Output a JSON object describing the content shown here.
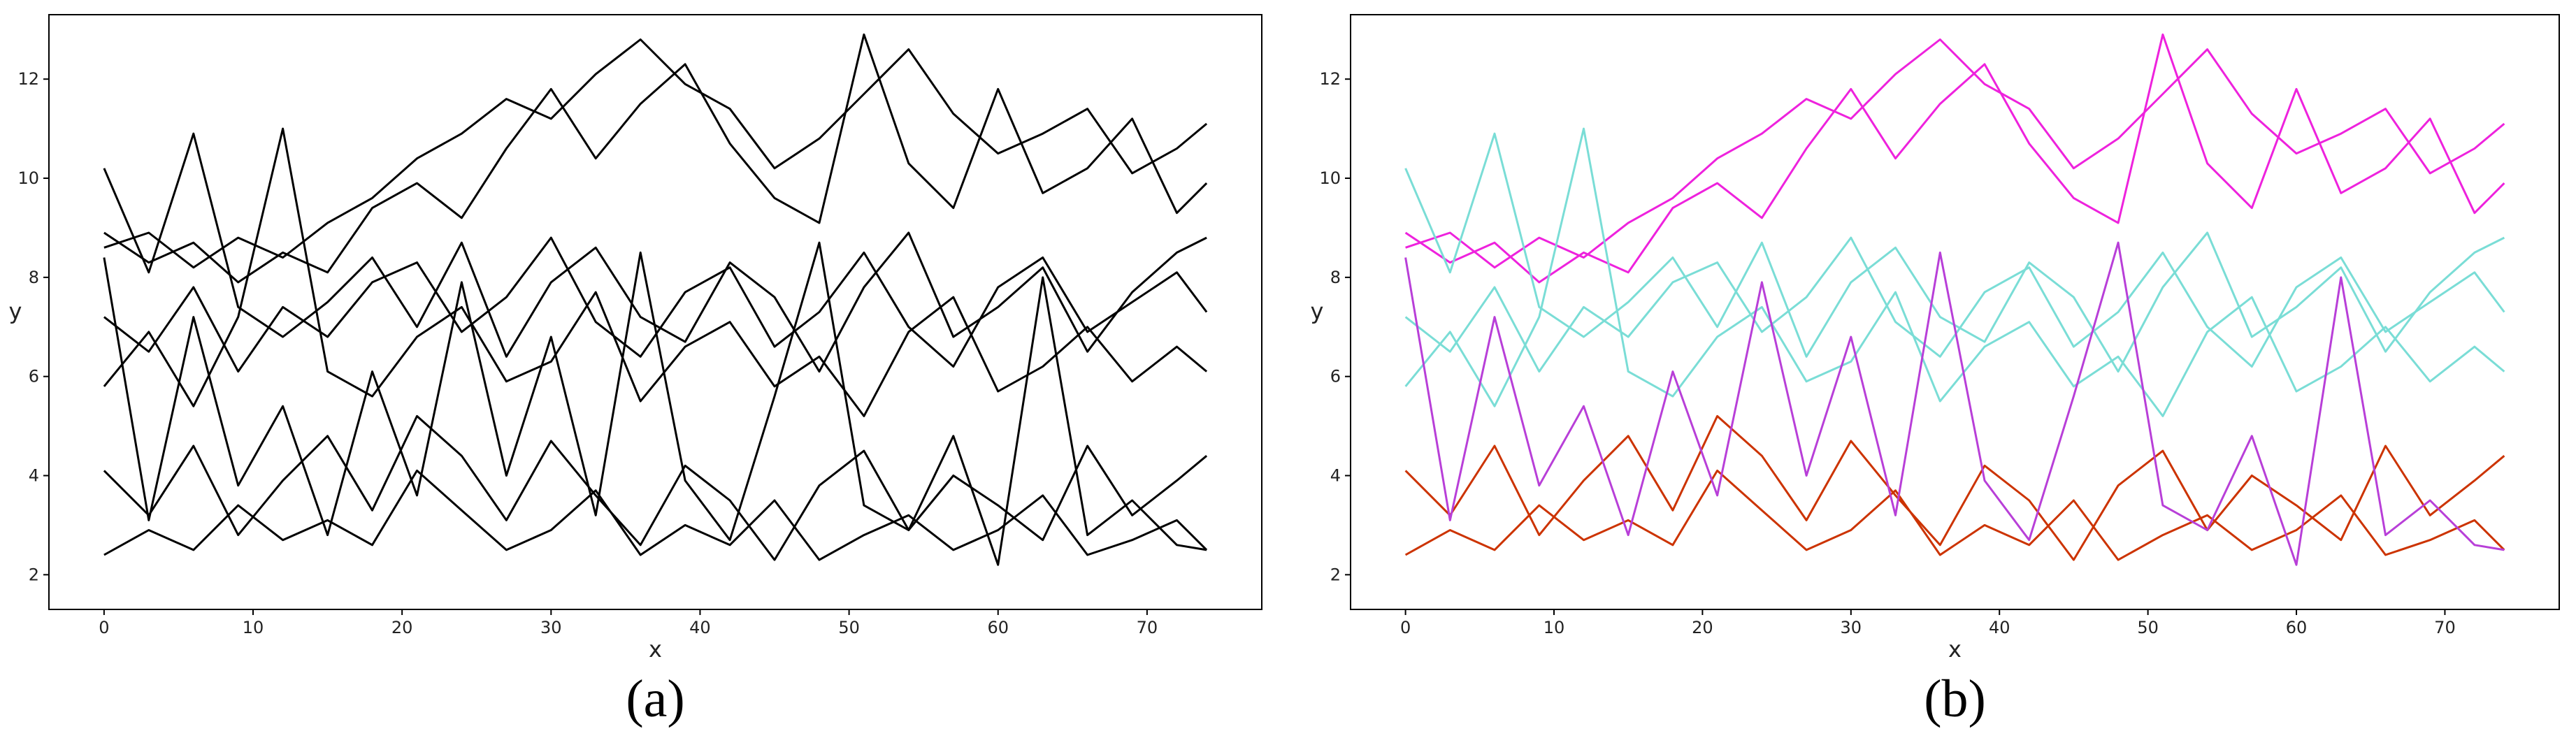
{
  "chart_data": [
    {
      "type": "line",
      "caption": "(a)",
      "xlabel": "x",
      "ylabel": "y",
      "xlim": [
        -3.7,
        77.7
      ],
      "ylim": [
        1.3,
        13.3
      ],
      "xticks": [
        0,
        10,
        20,
        30,
        40,
        50,
        60,
        70
      ],
      "yticks": [
        2,
        4,
        6,
        8,
        10,
        12
      ],
      "x": [
        0,
        3,
        6,
        9,
        12,
        15,
        18,
        21,
        24,
        27,
        30,
        33,
        36,
        39,
        42,
        45,
        48,
        51,
        54,
        57,
        60,
        63,
        66,
        69,
        72,
        74
      ],
      "series": [
        {
          "color": "#000000",
          "values": [
            8.6,
            8.9,
            8.2,
            8.8,
            8.4,
            9.1,
            9.6,
            10.4,
            10.9,
            11.6,
            11.2,
            12.1,
            12.8,
            11.9,
            11.4,
            10.2,
            10.8,
            11.7,
            12.6,
            11.3,
            10.5,
            10.9,
            11.4,
            10.1,
            10.6,
            11.1
          ]
        },
        {
          "color": "#000000",
          "values": [
            8.9,
            8.3,
            8.7,
            7.9,
            8.5,
            8.1,
            9.4,
            9.9,
            9.2,
            10.6,
            11.8,
            10.4,
            11.5,
            12.3,
            10.7,
            9.6,
            9.1,
            12.9,
            10.3,
            9.4,
            11.8,
            9.7,
            10.2,
            11.2,
            9.3,
            9.9
          ]
        },
        {
          "color": "#000000",
          "values": [
            7.2,
            6.5,
            7.8,
            6.1,
            7.4,
            6.8,
            7.9,
            8.3,
            6.9,
            7.6,
            8.8,
            7.1,
            6.4,
            7.7,
            8.2,
            6.6,
            7.3,
            8.5,
            7.0,
            6.2,
            7.8,
            8.4,
            6.9,
            7.5,
            8.1,
            7.3
          ]
        },
        {
          "color": "#000000",
          "values": [
            5.8,
            6.9,
            5.4,
            7.2,
            11.0,
            6.1,
            5.6,
            6.8,
            7.4,
            5.9,
            6.3,
            7.7,
            5.5,
            6.6,
            7.1,
            5.8,
            6.4,
            5.2,
            6.9,
            7.6,
            5.7,
            6.2,
            7.0,
            5.9,
            6.6,
            6.1
          ]
        },
        {
          "color": "#000000",
          "values": [
            10.2,
            8.1,
            10.9,
            7.4,
            6.8,
            7.5,
            8.4,
            7.0,
            8.7,
            6.4,
            7.9,
            8.6,
            7.2,
            6.7,
            8.3,
            7.6,
            6.1,
            7.8,
            8.9,
            6.8,
            7.4,
            8.2,
            6.5,
            7.7,
            8.5,
            8.8
          ]
        },
        {
          "color": "#000000",
          "values": [
            4.1,
            3.2,
            4.6,
            2.8,
            3.9,
            4.8,
            3.3,
            5.2,
            4.4,
            3.1,
            4.7,
            3.6,
            2.6,
            4.2,
            3.5,
            2.3,
            3.8,
            4.5,
            2.9,
            4.0,
            3.4,
            2.7,
            4.6,
            3.2,
            3.9,
            4.4
          ]
        },
        {
          "color": "#000000",
          "values": [
            2.4,
            2.9,
            2.5,
            3.4,
            2.7,
            3.1,
            2.6,
            4.1,
            3.3,
            2.5,
            2.9,
            3.7,
            2.4,
            3.0,
            2.6,
            3.5,
            2.3,
            2.8,
            3.2,
            2.5,
            2.9,
            3.6,
            2.4,
            2.7,
            3.1,
            2.5
          ]
        },
        {
          "color": "#000000",
          "values": [
            8.4,
            3.1,
            7.2,
            3.8,
            5.4,
            2.8,
            6.1,
            3.6,
            7.9,
            4.0,
            6.8,
            3.2,
            8.5,
            3.9,
            2.7,
            5.6,
            8.7,
            3.4,
            2.9,
            4.8,
            2.2,
            8.0,
            2.8,
            3.5,
            2.6,
            2.5
          ]
        }
      ]
    },
    {
      "type": "line",
      "caption": "(b)",
      "xlabel": "x",
      "ylabel": "y",
      "xlim": [
        -3.7,
        77.7
      ],
      "ylim": [
        1.3,
        13.3
      ],
      "xticks": [
        0,
        10,
        20,
        30,
        40,
        50,
        60,
        70
      ],
      "yticks": [
        2,
        4,
        6,
        8,
        10,
        12
      ],
      "x": [
        0,
        3,
        6,
        9,
        12,
        15,
        18,
        21,
        24,
        27,
        30,
        33,
        36,
        39,
        42,
        45,
        48,
        51,
        54,
        57,
        60,
        63,
        66,
        69,
        72,
        74
      ],
      "series": [
        {
          "color": "#ee22dd",
          "values": [
            8.6,
            8.9,
            8.2,
            8.8,
            8.4,
            9.1,
            9.6,
            10.4,
            10.9,
            11.6,
            11.2,
            12.1,
            12.8,
            11.9,
            11.4,
            10.2,
            10.8,
            11.7,
            12.6,
            11.3,
            10.5,
            10.9,
            11.4,
            10.1,
            10.6,
            11.1
          ]
        },
        {
          "color": "#ee22dd",
          "values": [
            8.9,
            8.3,
            8.7,
            7.9,
            8.5,
            8.1,
            9.4,
            9.9,
            9.2,
            10.6,
            11.8,
            10.4,
            11.5,
            12.3,
            10.7,
            9.6,
            9.1,
            12.9,
            10.3,
            9.4,
            11.8,
            9.7,
            10.2,
            11.2,
            9.3,
            9.9
          ]
        },
        {
          "color": "#7addd6",
          "values": [
            7.2,
            6.5,
            7.8,
            6.1,
            7.4,
            6.8,
            7.9,
            8.3,
            6.9,
            7.6,
            8.8,
            7.1,
            6.4,
            7.7,
            8.2,
            6.6,
            7.3,
            8.5,
            7.0,
            6.2,
            7.8,
            8.4,
            6.9,
            7.5,
            8.1,
            7.3
          ]
        },
        {
          "color": "#7addd6",
          "values": [
            5.8,
            6.9,
            5.4,
            7.2,
            11.0,
            6.1,
            5.6,
            6.8,
            7.4,
            5.9,
            6.3,
            7.7,
            5.5,
            6.6,
            7.1,
            5.8,
            6.4,
            5.2,
            6.9,
            7.6,
            5.7,
            6.2,
            7.0,
            5.9,
            6.6,
            6.1
          ]
        },
        {
          "color": "#7addd6",
          "values": [
            10.2,
            8.1,
            10.9,
            7.4,
            6.8,
            7.5,
            8.4,
            7.0,
            8.7,
            6.4,
            7.9,
            8.6,
            7.2,
            6.7,
            8.3,
            7.6,
            6.1,
            7.8,
            8.9,
            6.8,
            7.4,
            8.2,
            6.5,
            7.7,
            8.5,
            8.8
          ]
        },
        {
          "color": "#cc3300",
          "values": [
            4.1,
            3.2,
            4.6,
            2.8,
            3.9,
            4.8,
            3.3,
            5.2,
            4.4,
            3.1,
            4.7,
            3.6,
            2.6,
            4.2,
            3.5,
            2.3,
            3.8,
            4.5,
            2.9,
            4.0,
            3.4,
            2.7,
            4.6,
            3.2,
            3.9,
            4.4
          ]
        },
        {
          "color": "#cc3300",
          "values": [
            2.4,
            2.9,
            2.5,
            3.4,
            2.7,
            3.1,
            2.6,
            4.1,
            3.3,
            2.5,
            2.9,
            3.7,
            2.4,
            3.0,
            2.6,
            3.5,
            2.3,
            2.8,
            3.2,
            2.5,
            2.9,
            3.6,
            2.4,
            2.7,
            3.1,
            2.5
          ]
        },
        {
          "color": "#b83fd8",
          "values": [
            8.4,
            3.1,
            7.2,
            3.8,
            5.4,
            2.8,
            6.1,
            3.6,
            7.9,
            4.0,
            6.8,
            3.2,
            8.5,
            3.9,
            2.7,
            5.6,
            8.7,
            3.4,
            2.9,
            4.8,
            2.2,
            8.0,
            2.8,
            3.5,
            2.6,
            2.5
          ]
        }
      ]
    }
  ]
}
